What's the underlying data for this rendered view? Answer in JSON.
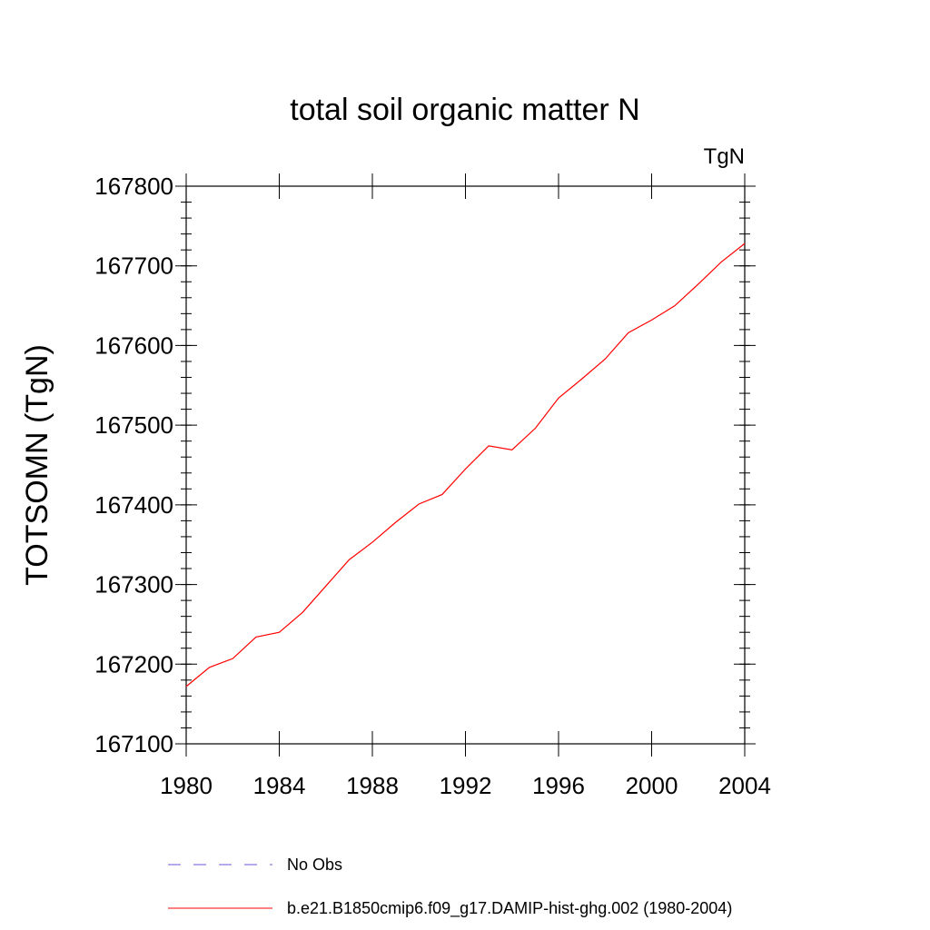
{
  "chart_data": {
    "type": "line",
    "title": "total soil organic matter N",
    "units_label": "TgN",
    "xlabel": "",
    "ylabel": "TOTSOMN  (TgN)",
    "xlim": [
      1980,
      2004
    ],
    "ylim": [
      167100,
      167800
    ],
    "x_ticks": [
      "1980",
      "1984",
      "1988",
      "1992",
      "1996",
      "2000",
      "2004"
    ],
    "y_ticks": [
      "167100",
      "167200",
      "167300",
      "167400",
      "167500",
      "167600",
      "167700",
      "167800"
    ],
    "grid": false,
    "legend_position": "bottom",
    "series": [
      {
        "name": "No Obs",
        "color": "#6a5acd",
        "dash": "dashed",
        "x": [],
        "y": []
      },
      {
        "name": "b.e21.B1850cmip6.f09_g17.DAMIP-hist-ghg.002 (1980-2004)",
        "color": "#ff0000",
        "dash": "solid",
        "x": [
          1980,
          1981,
          1982,
          1983,
          1984,
          1985,
          1986,
          1987,
          1988,
          1989,
          1990,
          1991,
          1992,
          1993,
          1994,
          1995,
          1996,
          1997,
          1998,
          1999,
          2000,
          2001,
          2002,
          2003,
          2004
        ],
        "y": [
          167172,
          167196,
          167207,
          167234,
          167240,
          167265,
          167298,
          167331,
          167353,
          167378,
          167401,
          167413,
          167445,
          167474,
          167469,
          167496,
          167534,
          167558,
          167583,
          167616,
          167632,
          167650,
          167677,
          167705,
          167728
        ]
      }
    ]
  }
}
